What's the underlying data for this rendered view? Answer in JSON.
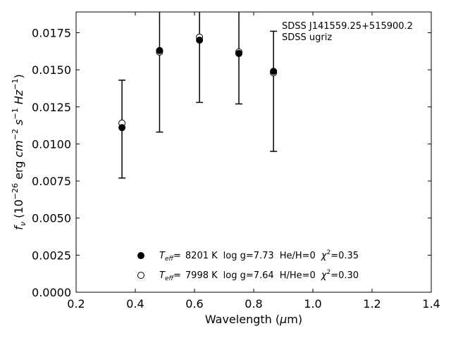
{
  "chart_data": {
    "type": "scatter",
    "xlabel_pre": "Wavelength (",
    "xlabel_mu": "μ",
    "xlabel_post": "m)",
    "ylabel_f": "f",
    "ylabel_nu": "ν",
    "ylabel_a": " (10",
    "ylabel_exp1": "−26",
    "ylabel_b": " erg ",
    "ylabel_cm": "cm",
    "ylabel_exp2": "−2",
    "ylabel_s": " s",
    "ylabel_exp3": "−1",
    "ylabel_hz": " Hz",
    "ylabel_exp4": "−1",
    "ylabel_c": ")",
    "xlim": [
      0.2,
      1.4
    ],
    "ylim": [
      0.0,
      0.0189
    ],
    "x_ticks": [
      "0.2",
      "0.4",
      "0.6",
      "0.8",
      "1.0",
      "1.2",
      "1.4"
    ],
    "x_tick_values": [
      0.2,
      0.4,
      0.6,
      0.8,
      1.0,
      1.2,
      1.4
    ],
    "y_ticks": [
      "0.0000",
      "0.0025",
      "0.0050",
      "0.0075",
      "0.0100",
      "0.0125",
      "0.0150",
      "0.0175"
    ],
    "y_tick_values": [
      0.0,
      0.0025,
      0.005,
      0.0075,
      0.01,
      0.0125,
      0.015,
      0.0175
    ],
    "annotation": [
      "SDSS J141559.25+515900.2",
      "SDSS ugriz"
    ],
    "observed": {
      "x": [
        0.355,
        0.482,
        0.617,
        0.75,
        0.867
      ],
      "y_low": [
        0.0077,
        0.0108,
        0.0128,
        0.0127,
        0.0095
      ],
      "y_high": [
        0.0143,
        0.0219,
        0.021,
        0.0195,
        0.0176
      ]
    },
    "series": [
      {
        "name": "Teff= 8201 K log g=7.73 He/H=0 χ2=0.35",
        "marker": "filled",
        "teff": "8201 K",
        "logg": "log g=7.73",
        "comp": "He/H=0",
        "chi2": "=0.35",
        "x": [
          0.355,
          0.482,
          0.617,
          0.75,
          0.867
        ],
        "y": [
          0.0111,
          0.0163,
          0.017,
          0.0161,
          0.0149
        ]
      },
      {
        "name": "Teff= 7998 K log g=7.64 H/He=0 χ2=0.30",
        "marker": "open",
        "teff": "7998 K",
        "logg": "log g=7.64",
        "comp": "H/He=0",
        "chi2": "=0.30",
        "x": [
          0.355,
          0.482,
          0.617,
          0.75,
          0.867
        ],
        "y": [
          0.0114,
          0.0162,
          0.0172,
          0.0162,
          0.0148
        ]
      }
    ],
    "legend_label_T": "T",
    "legend_label_eff": "eff",
    "legend_eq": "=",
    "legend_chi": "χ",
    "legend_chi_exp": "2",
    "colors": {
      "marker": "#000000",
      "open_fill": "#ffffff",
      "background": "#ffffff"
    }
  }
}
